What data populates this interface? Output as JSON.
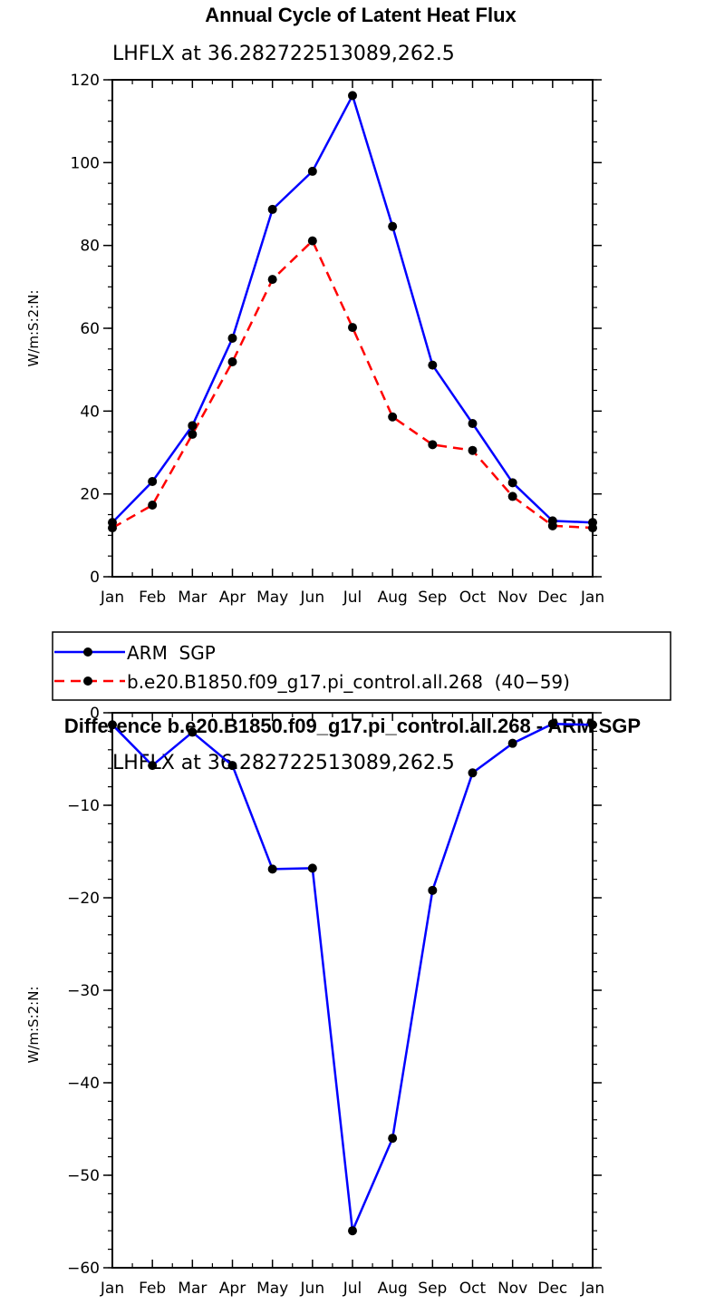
{
  "colors": {
    "series1": "#0000ff",
    "series2": "#ff0000",
    "marker": "#000000"
  },
  "chart_data": [
    {
      "type": "line",
      "title": "Annual Cycle of Latent Heat Flux",
      "subtitle": "LHFLX  at  36.282722513089,262.5",
      "ylabel": "W/m:S:2:N:",
      "xlabel": "",
      "categories": [
        "Jan",
        "Feb",
        "Mar",
        "Apr",
        "May",
        "Jun",
        "Jul",
        "Aug",
        "Sep",
        "Oct",
        "Nov",
        "Dec",
        "Jan"
      ],
      "ylim": [
        0,
        120
      ],
      "yticks": [
        0,
        20,
        40,
        60,
        80,
        100,
        120
      ],
      "grid": false,
      "legend_position": "below",
      "series": [
        {
          "name": "ARM  SGP",
          "style": "solid",
          "values": [
            13.1,
            23.0,
            36.5,
            57.6,
            88.7,
            97.9,
            116.2,
            84.6,
            51.1,
            37.0,
            22.7,
            13.5,
            13.1
          ]
        },
        {
          "name": "b.e20.B1850.f09_g17.pi_control.all.268  (40−59)",
          "style": "dashed",
          "values": [
            11.8,
            17.3,
            34.4,
            51.9,
            71.8,
            81.1,
            60.2,
            38.6,
            31.9,
            30.5,
            19.4,
            12.3,
            11.8
          ]
        }
      ]
    },
    {
      "type": "line",
      "title": "Difference b.e20.B1850.f09_g17.pi_control.all.268 - ARM SGP",
      "subtitle": "LHFLX  at  36.282722513089,262.5",
      "ylabel": "W/m:S:2:N:",
      "xlabel": "",
      "categories": [
        "Jan",
        "Feb",
        "Mar",
        "Apr",
        "May",
        "Jun",
        "Jul",
        "Aug",
        "Sep",
        "Oct",
        "Nov",
        "Dec",
        "Jan"
      ],
      "ylim": [
        -60,
        0
      ],
      "yticks": [
        0,
        -10,
        -20,
        -30,
        -40,
        -50,
        -60
      ],
      "grid": false,
      "series": [
        {
          "style": "solid",
          "values": [
            -1.3,
            -5.7,
            -2.1,
            -5.7,
            -16.9,
            -16.8,
            -56.0,
            -46.0,
            -19.2,
            -6.5,
            -3.3,
            -1.2,
            -1.3
          ]
        }
      ]
    }
  ]
}
